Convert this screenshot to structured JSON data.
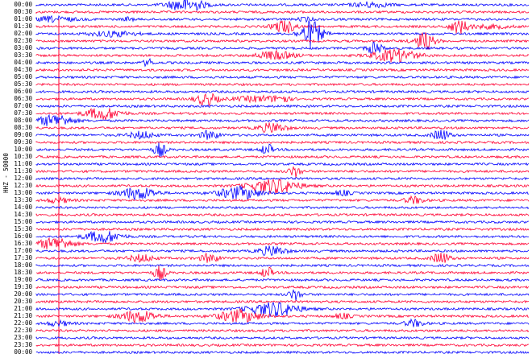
{
  "station_label": "HHZ - 50000",
  "rows": [
    "00:00",
    "00:30",
    "01:00",
    "01:30",
    "02:00",
    "02:30",
    "03:00",
    "03:30",
    "04:00",
    "04:30",
    "05:00",
    "05:30",
    "06:00",
    "06:30",
    "07:00",
    "07:30",
    "08:00",
    "08:30",
    "09:00",
    "09:30",
    "10:00",
    "10:30",
    "11:00",
    "11:30",
    "12:00",
    "12:30",
    "13:00",
    "13:30",
    "14:00",
    "14:30",
    "15:00",
    "15:30",
    "16:00",
    "16:30",
    "17:00",
    "17:30",
    "18:00",
    "18:30",
    "19:00",
    "19:30",
    "20:00",
    "20:30",
    "21:00",
    "21:30",
    "22:00",
    "22:30",
    "23:00",
    "23:30",
    "00:00"
  ],
  "colors": [
    "#0000ff",
    "#ff0033"
  ]
}
